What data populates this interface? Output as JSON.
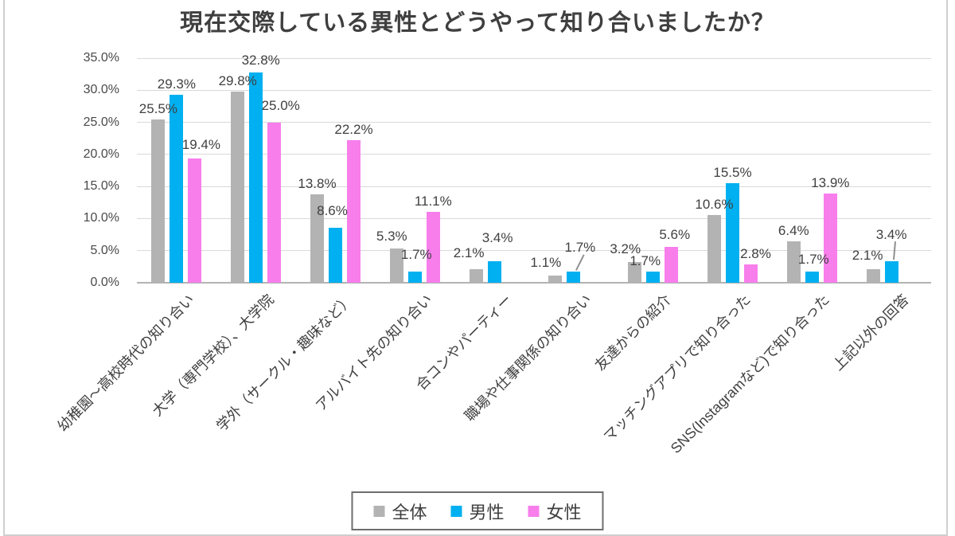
{
  "chart_data": {
    "type": "bar",
    "title": "現在交際している異性とどうやって知り合いましたか？",
    "categories": [
      "幼稚園～高校時代の知り合い",
      "大学（専門学校）、大学院",
      "学外（サークル・趣味など）",
      "アルバイト先の知り合い",
      "合コンやパーティー",
      "職場や仕事関係の知り合い",
      "友達からの紹介",
      "マッチングアプリで知り合った",
      "SNS(Instagramなど)で知り合った",
      "上記以外の回答"
    ],
    "series": [
      {
        "name": "全体",
        "color": "#b3b3b3",
        "values": [
          25.5,
          29.8,
          13.8,
          5.3,
          2.1,
          1.1,
          3.2,
          10.6,
          6.4,
          2.1
        ]
      },
      {
        "name": "男性",
        "color": "#00b0f0",
        "values": [
          29.3,
          32.8,
          8.6,
          1.7,
          3.4,
          1.7,
          1.7,
          15.5,
          1.7,
          3.4
        ]
      },
      {
        "name": "女性",
        "color": "#f77eeb",
        "values": [
          19.4,
          25.0,
          22.2,
          11.1,
          0,
          0,
          5.6,
          2.8,
          13.9,
          0
        ]
      }
    ],
    "ylim": [
      0,
      35
    ],
    "ytick_step": 5,
    "ytick_labels": [
      "0.0%",
      "5.0%",
      "10.0%",
      "15.0%",
      "20.0%",
      "25.0%",
      "30.0%",
      "35.0%"
    ],
    "grid": true,
    "legend_position": "bottom",
    "data_label_format": "0.0%",
    "label_offsets": {
      "2-0": {
        "dx": 8,
        "dy": -4
      },
      "1-1": {
        "dx": 6,
        "dy": -2
      },
      "2-1": {
        "dx": 8,
        "dy": -8
      },
      "1-2": {
        "dx": -4,
        "dy": -8
      },
      "0-3": {
        "dx": -6,
        "dy": -2
      },
      "1-3": {
        "dx": 2,
        "dy": -8
      },
      "0-4": {
        "dx": -9,
        "dy": -7
      },
      "1-4": {
        "dx": 4,
        "dy": -16
      },
      "0-5": {
        "dx": -12,
        "dy": -3
      },
      "1-5": {
        "dx": 8,
        "dy": -17,
        "leader": true
      },
      "0-6": {
        "dx": -12,
        "dy": -3
      },
      "1-6": {
        "dx": -10,
        "dy": 0
      },
      "2-6": {
        "dx": 4,
        "dy": -2
      },
      "2-7": {
        "dx": 6,
        "dy": 0
      },
      "1-8": {
        "dx": 2,
        "dy": -2
      },
      "0-9": {
        "dx": -7,
        "dy": -4
      },
      "1-9": {
        "dx": 0,
        "dy": -20,
        "leader": true
      }
    }
  },
  "colors": {
    "text": "#404040",
    "gridline": "#d9d9d9",
    "axis_line": "#b3b3b3",
    "legend_border": "#6e6e6e",
    "frame_border": "#cfcfcf",
    "background": "#ffffff"
  }
}
